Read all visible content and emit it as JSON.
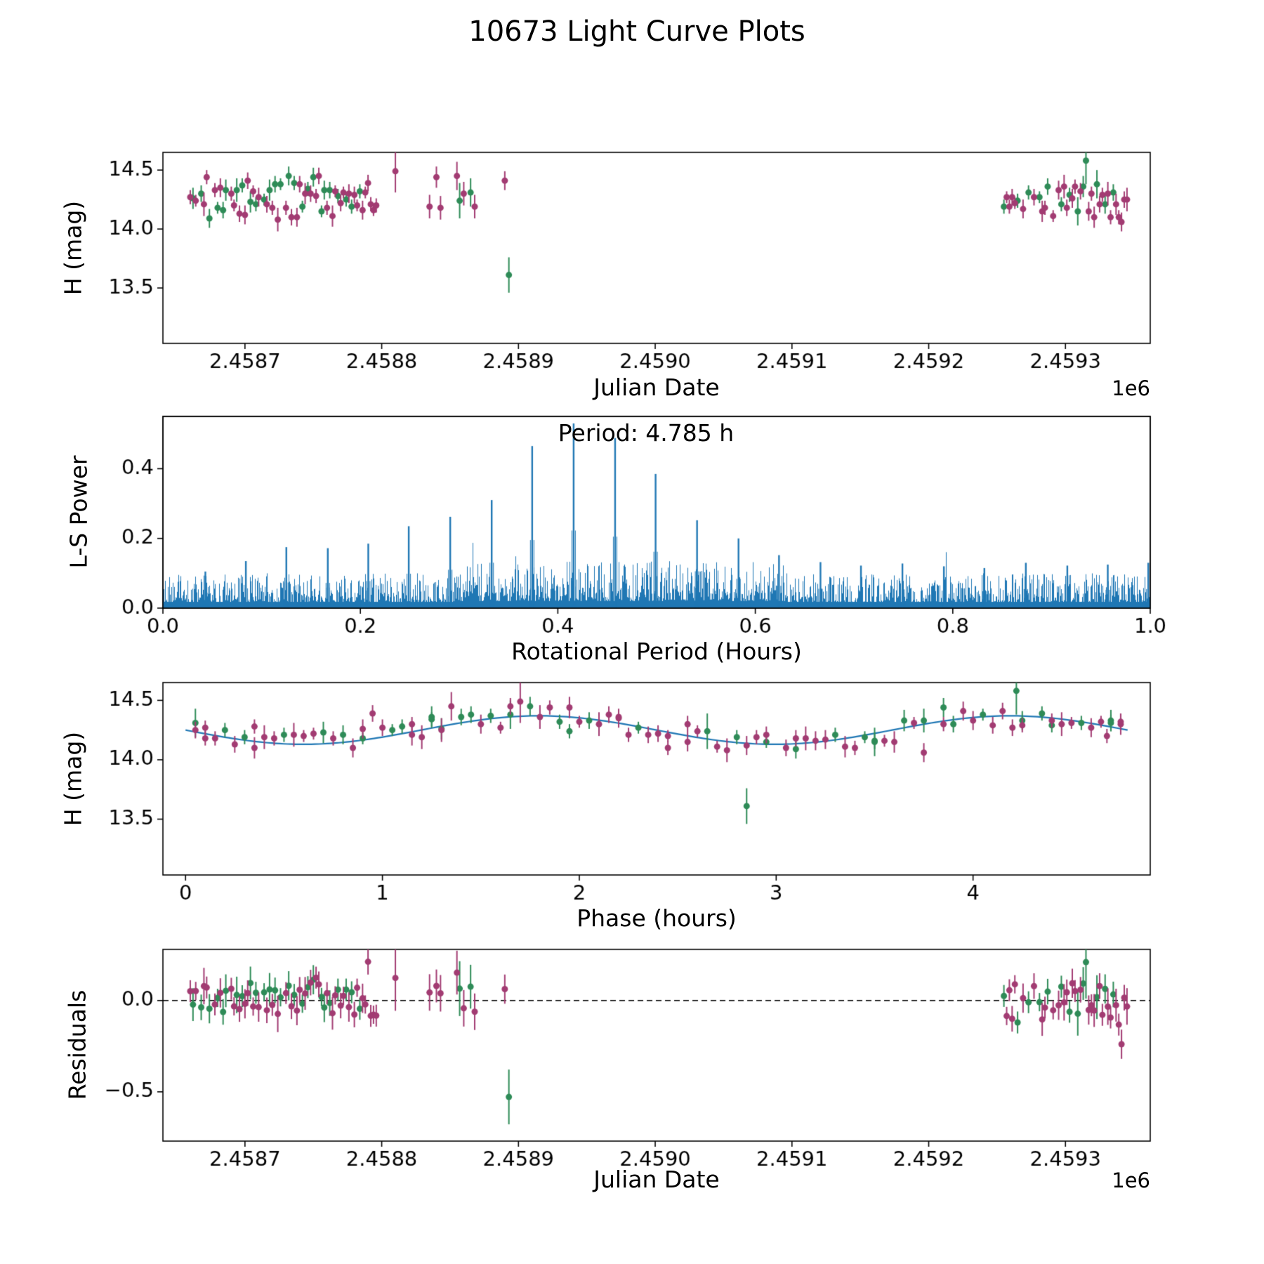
{
  "title": "10673 Light Curve Plots",
  "colors": {
    "series_green": "#2e8b57",
    "series_purple": "#a23b72",
    "line_blue": "#1f77b4",
    "axis": "#000000"
  },
  "labels": {
    "p1_xlabel": "Julian Date",
    "p1_ylabel": "H (mag)",
    "p1_offset": "1e6",
    "p2_xlabel": "Rotational Period (Hours)",
    "p2_ylabel": "L-S Power",
    "p2_annotation": "Period: 4.785 h",
    "p3_xlabel": "Phase (hours)",
    "p3_ylabel": "H (mag)",
    "p4_xlabel": "Julian Date",
    "p4_ylabel": "Residuals",
    "p4_offset": "1e6"
  },
  "observations_columns": [
    "julian_date_div_1e6",
    "phase_hours",
    "H_mag",
    "H_err"
  ],
  "observations": {
    "green": [
      [
        2.458662,
        1.3,
        14.26,
        0.09
      ],
      [
        2.458668,
        3.9,
        14.3,
        0.07
      ],
      [
        2.458674,
        3.1,
        14.09,
        0.08
      ],
      [
        2.45868,
        0.9,
        14.18,
        0.05
      ],
      [
        2.458684,
        3.5,
        14.16,
        0.07
      ],
      [
        2.458686,
        4.7,
        14.33,
        0.09
      ],
      [
        2.458694,
        3.75,
        14.33,
        0.1
      ],
      [
        2.458698,
        1.55,
        14.37,
        0.06
      ],
      [
        2.458704,
        0.7,
        14.23,
        0.09
      ],
      [
        2.458708,
        3.3,
        14.21,
        0.06
      ],
      [
        2.458714,
        1.05,
        14.25,
        0.05
      ],
      [
        2.458718,
        3.65,
        14.33,
        0.09
      ],
      [
        2.458722,
        1.45,
        14.38,
        0.07
      ],
      [
        2.458726,
        4.05,
        14.38,
        0.05
      ],
      [
        2.458732,
        1.75,
        14.45,
        0.08
      ],
      [
        2.458736,
        4.35,
        14.39,
        0.06
      ],
      [
        2.458742,
        3.45,
        14.19,
        0.05
      ],
      [
        2.458746,
        1.25,
        14.34,
        0.06
      ],
      [
        2.45875,
        3.85,
        14.44,
        0.08
      ],
      [
        2.458756,
        2.95,
        14.15,
        0.05
      ],
      [
        2.458758,
        4.25,
        14.33,
        0.08
      ],
      [
        2.458762,
        2.05,
        14.33,
        0.07
      ],
      [
        2.458768,
        1.1,
        14.28,
        0.06
      ],
      [
        2.458774,
        0.2,
        14.25,
        0.06
      ],
      [
        2.458778,
        2.8,
        14.19,
        0.06
      ],
      [
        2.458784,
        1.9,
        14.32,
        0.06
      ],
      [
        2.458857,
        2.65,
        14.24,
        0.15
      ],
      [
        2.458865,
        0.05,
        14.31,
        0.12
      ],
      [
        2.458893,
        2.85,
        13.61,
        0.15
      ],
      [
        2.459255,
        0.3,
        14.19,
        0.06
      ],
      [
        2.459265,
        1.95,
        14.24,
        0.06
      ],
      [
        2.459273,
        4.55,
        14.31,
        0.06
      ],
      [
        2.459281,
        2.3,
        14.27,
        0.05
      ],
      [
        2.459287,
        1.4,
        14.36,
        0.07
      ],
      [
        2.459297,
        0.5,
        14.21,
        0.06
      ],
      [
        2.459303,
        4.4,
        14.29,
        0.06
      ],
      [
        2.459309,
        3.5,
        14.15,
        0.12
      ],
      [
        2.459313,
        1.25,
        14.36,
        0.09
      ],
      [
        2.459315,
        4.22,
        14.58,
        0.2
      ],
      [
        2.459323,
        1.65,
        14.38,
        0.12
      ],
      [
        2.459329,
        0.8,
        14.21,
        0.08
      ],
      [
        2.459335,
        4.7,
        14.31,
        0.07
      ]
    ],
    "purple": [
      [
        2.45866,
        0.1,
        14.27,
        0.06
      ],
      [
        2.458664,
        2.6,
        14.24,
        0.05
      ],
      [
        2.45867,
        0.55,
        14.21,
        0.1
      ],
      [
        2.458672,
        1.85,
        14.44,
        0.06
      ],
      [
        2.458678,
        4.4,
        14.33,
        0.06
      ],
      [
        2.458682,
        2.2,
        14.35,
        0.08
      ],
      [
        2.45869,
        1.15,
        14.3,
        0.06
      ],
      [
        2.458692,
        2.45,
        14.2,
        0.05
      ],
      [
        2.458696,
        0.25,
        14.13,
        0.07
      ],
      [
        2.4587,
        2.85,
        14.12,
        0.08
      ],
      [
        2.458702,
        4.15,
        14.41,
        0.07
      ],
      [
        2.458706,
        2.0,
        14.32,
        0.05
      ],
      [
        2.45871,
        4.6,
        14.27,
        0.08
      ],
      [
        2.458716,
        2.35,
        14.21,
        0.07
      ],
      [
        2.45872,
        0.15,
        14.18,
        0.06
      ],
      [
        2.458724,
        2.75,
        14.08,
        0.1
      ],
      [
        2.45873,
        0.45,
        14.18,
        0.06
      ],
      [
        2.458734,
        3.05,
        14.1,
        0.07
      ],
      [
        2.458738,
        0.85,
        14.1,
        0.08
      ],
      [
        2.45874,
        2.15,
        14.38,
        0.07
      ],
      [
        2.458744,
        4.75,
        14.3,
        0.09
      ],
      [
        2.458748,
        2.55,
        14.3,
        0.07
      ],
      [
        2.458752,
        0.35,
        14.28,
        0.06
      ],
      [
        2.458754,
        1.65,
        14.45,
        0.07
      ],
      [
        2.45876,
        0.75,
        14.18,
        0.06
      ],
      [
        2.458764,
        3.35,
        14.11,
        0.09
      ],
      [
        2.458766,
        4.65,
        14.32,
        0.05
      ],
      [
        2.45877,
        2.4,
        14.22,
        0.07
      ],
      [
        2.458772,
        3.7,
        14.31,
        0.05
      ],
      [
        2.458776,
        1.5,
        14.3,
        0.08
      ],
      [
        2.45878,
        4.1,
        14.29,
        0.07
      ],
      [
        2.458782,
        0.6,
        14.2,
        0.05
      ],
      [
        2.458786,
        3.2,
        14.16,
        0.08
      ],
      [
        2.458788,
        4.5,
        14.31,
        0.05
      ],
      [
        2.45879,
        0.95,
        14.39,
        0.07
      ],
      [
        2.458792,
        2.25,
        14.21,
        0.06
      ],
      [
        2.458794,
        3.55,
        14.16,
        0.05
      ],
      [
        2.458796,
        4.68,
        14.2,
        0.06
      ],
      [
        2.45881,
        1.7,
        14.49,
        0.18
      ],
      [
        2.458835,
        0.4,
        14.19,
        0.1
      ],
      [
        2.45884,
        1.95,
        14.44,
        0.09
      ],
      [
        2.458843,
        3.15,
        14.18,
        0.1
      ],
      [
        2.458855,
        1.35,
        14.45,
        0.12
      ],
      [
        2.45886,
        4.45,
        14.3,
        0.1
      ],
      [
        2.458868,
        1.2,
        14.19,
        0.1
      ],
      [
        2.45889,
        3.95,
        14.41,
        0.08
      ],
      [
        2.459257,
        1.6,
        14.27,
        0.05
      ],
      [
        2.459259,
        2.9,
        14.19,
        0.06
      ],
      [
        2.459261,
        4.2,
        14.27,
        0.07
      ],
      [
        2.459263,
        0.65,
        14.22,
        0.05
      ],
      [
        2.459269,
        3.25,
        14.17,
        0.08
      ],
      [
        2.459277,
        1.0,
        14.27,
        0.07
      ],
      [
        2.459283,
        3.6,
        14.15,
        0.09
      ],
      [
        2.459285,
        0.1,
        14.18,
        0.06
      ],
      [
        2.459291,
        2.7,
        14.11,
        0.05
      ],
      [
        2.459295,
        4.0,
        14.33,
        0.08
      ],
      [
        2.459299,
        1.8,
        14.36,
        0.1
      ],
      [
        2.459301,
        3.1,
        14.18,
        0.07
      ],
      [
        2.459305,
        0.9,
        14.26,
        0.08
      ],
      [
        2.459307,
        2.2,
        14.36,
        0.06
      ],
      [
        2.459311,
        4.75,
        14.32,
        0.07
      ],
      [
        2.459317,
        2.55,
        14.15,
        0.08
      ],
      [
        2.459319,
        3.85,
        14.3,
        0.06
      ],
      [
        2.459321,
        0.35,
        14.1,
        0.09
      ],
      [
        2.459325,
        2.95,
        14.21,
        0.07
      ],
      [
        2.459327,
        4.25,
        14.29,
        0.06
      ],
      [
        2.459331,
        2.1,
        14.3,
        0.1
      ],
      [
        2.459333,
        3.4,
        14.1,
        0.06
      ],
      [
        2.459337,
        1.15,
        14.21,
        0.09
      ],
      [
        2.459339,
        2.45,
        14.1,
        0.06
      ],
      [
        2.459341,
        3.75,
        14.06,
        0.08
      ],
      [
        2.459343,
        0.05,
        14.25,
        0.07
      ],
      [
        2.459345,
        1.3,
        14.25,
        0.1
      ]
    ]
  },
  "chart_data": [
    {
      "id": "jd_lightcurve",
      "type": "scatter",
      "xlabel": "Julian Date",
      "ylabel": "H (mag)",
      "x_offset_text": "1e6",
      "xlim": [
        2.45864,
        2.459362
      ],
      "ylim": [
        13.03,
        14.65
      ],
      "xticks": {
        "values": [
          2.4587,
          2.4588,
          2.4589,
          2.459,
          2.4591,
          2.4592,
          2.4593
        ],
        "labels": [
          "2.4587",
          "2.4588",
          "2.4589",
          "2.4590",
          "2.4591",
          "2.4592",
          "2.4593"
        ]
      },
      "yticks": {
        "values": [
          13.5,
          14.0,
          14.5
        ],
        "labels": [
          "13.5",
          "14.0",
          "14.5"
        ]
      },
      "series": [
        "green",
        "purple"
      ]
    },
    {
      "id": "periodogram",
      "type": "line",
      "xlabel": "Rotational Period (Hours)",
      "ylabel": "L-S Power",
      "annotation": "Period: 4.785 h",
      "best_period_hours": 4.785,
      "xlim": [
        0.0,
        1.0
      ],
      "ylim": [
        0.0,
        0.55
      ],
      "xticks": {
        "values": [
          0.0,
          0.2,
          0.4,
          0.6,
          0.8,
          1.0
        ],
        "labels": [
          "0.0",
          "0.2",
          "0.4",
          "0.6",
          "0.8",
          "1.0"
        ]
      },
      "yticks": {
        "values": [
          0.0,
          0.2,
          0.4
        ],
        "labels": [
          "0.0",
          "0.2",
          "0.4"
        ]
      },
      "peaks": [
        [
          0.043,
          0.105
        ],
        [
          0.084,
          0.135
        ],
        [
          0.125,
          0.175
        ],
        [
          0.167,
          0.172
        ],
        [
          0.208,
          0.185
        ],
        [
          0.249,
          0.235
        ],
        [
          0.291,
          0.262
        ],
        [
          0.333,
          0.31
        ],
        [
          0.374,
          0.465
        ],
        [
          0.416,
          0.53
        ],
        [
          0.458,
          0.488
        ],
        [
          0.499,
          0.385
        ],
        [
          0.541,
          0.252
        ],
        [
          0.583,
          0.2
        ],
        [
          0.624,
          0.152
        ],
        [
          0.666,
          0.132
        ],
        [
          0.707,
          0.122
        ],
        [
          0.749,
          0.128
        ],
        [
          0.791,
          0.12
        ],
        [
          0.832,
          0.115
        ],
        [
          0.874,
          0.13
        ],
        [
          0.916,
          0.122
        ],
        [
          0.957,
          0.125
        ],
        [
          0.998,
          0.13
        ]
      ],
      "noise": {
        "seed": 20231,
        "floor": 0.015,
        "amp": 0.085,
        "boost_region": [
          0.3,
          0.63
        ],
        "boost": 1.35,
        "solid_base": 0.018
      }
    },
    {
      "id": "phased_lightcurve",
      "type": "scatter+line",
      "xlabel": "Phase (hours)",
      "ylabel": "H (mag)",
      "xlim": [
        -0.115,
        4.9
      ],
      "ylim": [
        13.03,
        14.65
      ],
      "xticks": {
        "values": [
          0,
          1,
          2,
          3,
          4
        ],
        "labels": [
          "0",
          "1",
          "2",
          "3",
          "4"
        ]
      },
      "yticks": {
        "values": [
          13.5,
          14.0,
          14.5
        ],
        "labels": [
          "13.5",
          "14.0",
          "14.5"
        ]
      },
      "fit": {
        "mean": 14.25,
        "amplitude": 0.12,
        "sin_period_hours": 2.3925,
        "phase_shift_rad": 3.14159265,
        "period_hours": 4.785
      },
      "series": [
        "green",
        "purple"
      ]
    },
    {
      "id": "residuals",
      "type": "scatter",
      "xlabel": "Julian Date",
      "ylabel": "Residuals",
      "x_offset_text": "1e6",
      "xlim": [
        2.45864,
        2.459362
      ],
      "ylim": [
        -0.77,
        0.28
      ],
      "xticks": {
        "values": [
          2.4587,
          2.4588,
          2.4589,
          2.459,
          2.4591,
          2.4592,
          2.4593
        ],
        "labels": [
          "2.4587",
          "2.4588",
          "2.4589",
          "2.4590",
          "2.4591",
          "2.4592",
          "2.4593"
        ]
      },
      "yticks": {
        "values": [
          -0.5,
          0.0
        ],
        "labels": [
          "−0.5",
          "0.0"
        ]
      },
      "zero_line": "dashed",
      "series": [
        "green",
        "purple"
      ]
    }
  ]
}
